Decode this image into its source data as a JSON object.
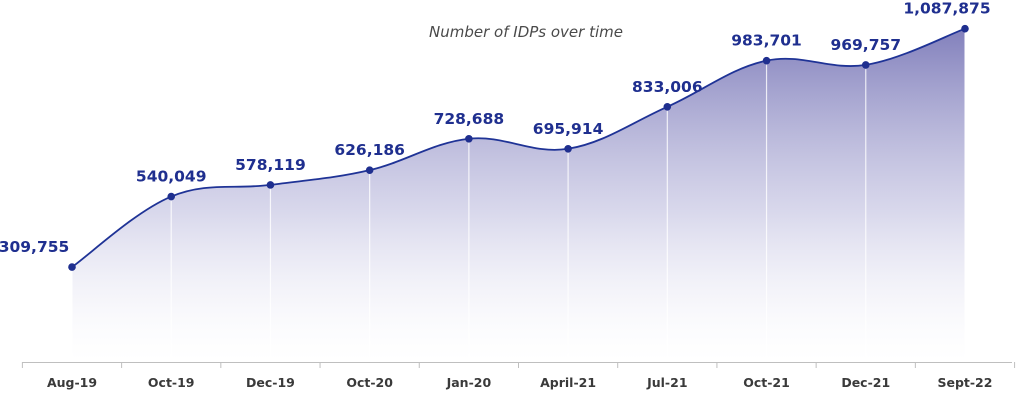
{
  "chart_data": {
    "type": "area",
    "title": "Number of IDPs over time",
    "xlabel": "",
    "ylabel": "",
    "categories": [
      "Aug-19",
      "Oct-19",
      "Dec-19",
      "Oct-20",
      "Jan-20",
      "April-21",
      "Jul-21",
      "Oct-21",
      "Dec-21",
      "Sept-22"
    ],
    "series": [
      {
        "values": [
          309755,
          540049,
          578119,
          626186,
          728688,
          695914,
          833006,
          983701,
          969757,
          1087875
        ]
      }
    ],
    "data_labels": [
      "309,755",
      "540,049",
      "578,119",
      "626,186",
      "728,688",
      "695,914",
      "833,006",
      "983,701",
      "969,757",
      "1,087,875"
    ],
    "ylim": [
      0,
      1100000
    ],
    "grid": false,
    "legend": "none",
    "colors": {
      "line": "#1f3396",
      "marker": "#1f2f8f",
      "area_top": "#7b79b8",
      "area_bottom": "#ffffff",
      "label": "#1f2f8f",
      "axis": "#bfbfbf",
      "drop_line": "#ffffff"
    }
  }
}
